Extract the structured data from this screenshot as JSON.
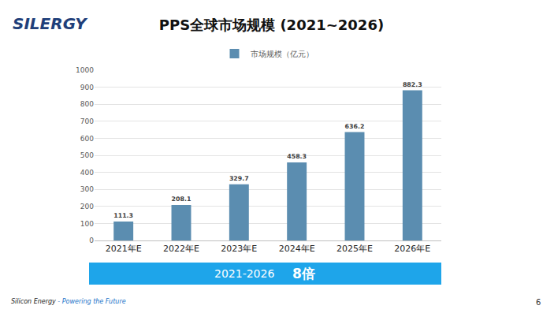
{
  "chart_data": {
    "type": "bar",
    "title": "PPS全球市场规模 (2021~2026)",
    "categories": [
      "2021年E",
      "2022年E",
      "2023年E",
      "2024年E",
      "2025年E",
      "2026年E"
    ],
    "series": [
      {
        "name": "市场规模（亿元）",
        "color": "#5b8db0",
        "values": [
          111.3,
          208.1,
          329.7,
          458.3,
          636.2,
          882.3
        ]
      }
    ],
    "ylim": [
      0,
      1000
    ],
    "yticks": [
      0,
      100,
      200,
      300,
      400,
      500,
      600,
      700,
      800,
      900,
      1000
    ],
    "grid": true,
    "legend": "top",
    "data_labels": true
  },
  "logo": "SILERGY",
  "banner": {
    "period": "2021-2026",
    "growth": "8倍"
  },
  "footer": {
    "company": "Silicon Energy",
    "slogan": "- Powering the Future"
  },
  "page_number": "6"
}
